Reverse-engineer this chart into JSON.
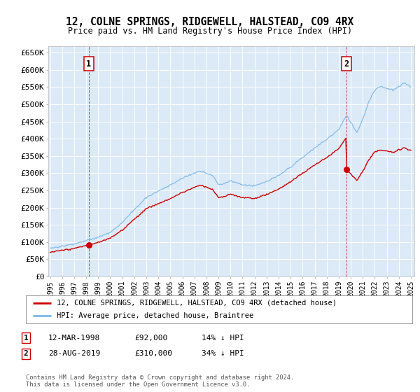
{
  "title": "12, COLNE SPRINGS, RIDGEWELL, HALSTEAD, CO9 4RX",
  "subtitle": "Price paid vs. HM Land Registry's House Price Index (HPI)",
  "background_color": "#dce9f7",
  "plot_bg_color": "#dce9f7",
  "hpi_color": "#7ab8e8",
  "price_color": "#cc0000",
  "ylim": [
    0,
    670000
  ],
  "yticks": [
    0,
    50000,
    100000,
    150000,
    200000,
    250000,
    300000,
    350000,
    400000,
    450000,
    500000,
    550000,
    600000,
    650000
  ],
  "ytick_labels": [
    "£0",
    "£50K",
    "£100K",
    "£150K",
    "£200K",
    "£250K",
    "£300K",
    "£350K",
    "£400K",
    "£450K",
    "£500K",
    "£550K",
    "£600K",
    "£650K"
  ],
  "sale1_date": 1998.21,
  "sale1_price": 92000,
  "sale2_date": 2019.65,
  "sale2_price": 310000,
  "legend_line1": "12, COLNE SPRINGS, RIDGEWELL, HALSTEAD, CO9 4RX (detached house)",
  "legend_line2": "HPI: Average price, detached house, Braintree",
  "note1_date": "12-MAR-1998",
  "note1_price": "£92,000",
  "note1_pct": "14% ↓ HPI",
  "note2_date": "28-AUG-2019",
  "note2_price": "£310,000",
  "note2_pct": "34% ↓ HPI",
  "copyright": "Contains HM Land Registry data © Crown copyright and database right 2024.\nThis data is licensed under the Open Government Licence v3.0."
}
